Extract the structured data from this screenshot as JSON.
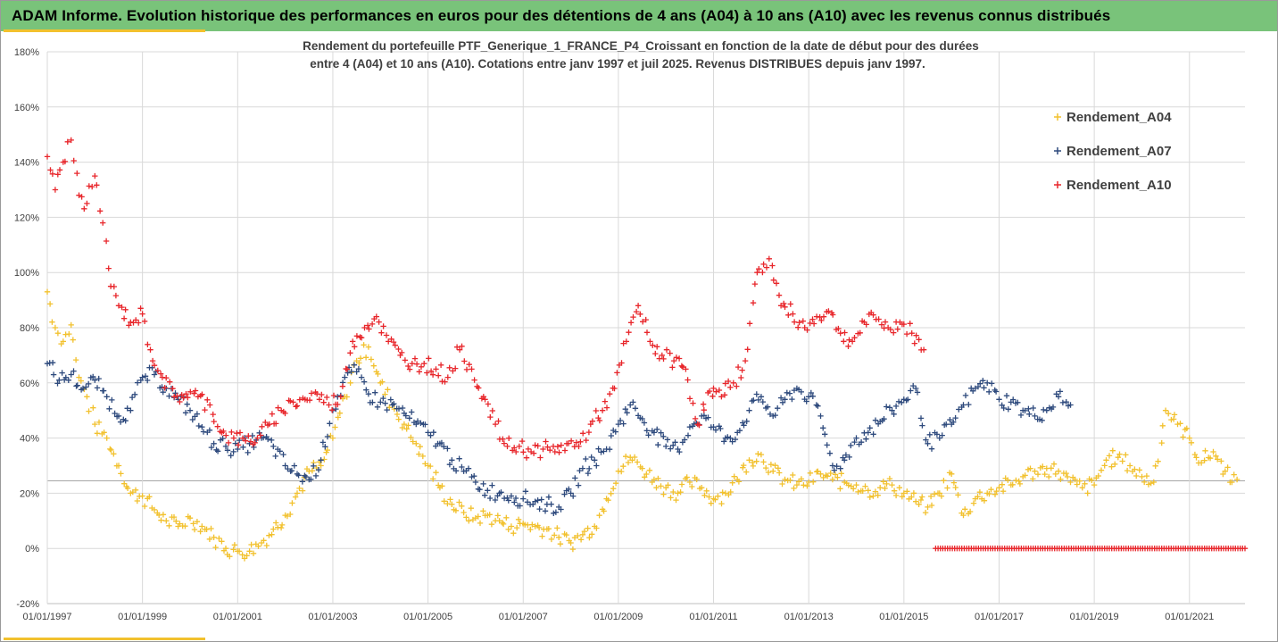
{
  "header": {
    "title": "ADAM Informe. Evolution historique des performances en euros pour des détentions de 4 ans (A04) à 10 ans (A10) avec les revenus connus distribués"
  },
  "colors": {
    "header_bg": "#79c37a",
    "accent": "#f2c12e",
    "A04": "#f2c12e",
    "A07": "#2e4a7d",
    "A10": "#e8262b"
  },
  "chart_data": {
    "type": "scatter",
    "title_lines": [
      "Rendement du portefeuille PTF_Generique_1_FRANCE_P4_Croissant  en fonction de la date de début pour des durées",
      "entre 4 (A04) et 10 ans (A10). Cotations  entre janv 1997 et juil 2025. Revenus DISTRIBUES depuis janv 1997."
    ],
    "marker": "+",
    "x_axis": {
      "type": "date",
      "range": [
        "1997-01-01",
        "2022-03-01"
      ],
      "ticks": [
        "01/01/1997",
        "01/01/1999",
        "01/01/2001",
        "01/01/2003",
        "01/01/2005",
        "01/01/2007",
        "01/01/2009",
        "01/01/2011",
        "01/01/2013",
        "01/01/2015",
        "01/01/2017",
        "01/01/2019",
        "01/01/2021"
      ]
    },
    "y_axis": {
      "range": [
        -20,
        180
      ],
      "unit": "%",
      "ticks": [
        "-20%",
        "0%",
        "20%",
        "40%",
        "60%",
        "80%",
        "100%",
        "120%",
        "140%",
        "160%",
        "180%"
      ]
    },
    "grid": "horizontal",
    "reference_line": 24.5,
    "legend": {
      "position": "top-right"
    },
    "series": [
      {
        "name": "Rendement_A04",
        "color": "#f2c12e",
        "points": [
          [
            "1997-01",
            93
          ],
          [
            "1997-03",
            80
          ],
          [
            "1997-05",
            75
          ],
          [
            "1997-07",
            81
          ],
          [
            "1997-09",
            62
          ],
          [
            "1997-11",
            55
          ],
          [
            "1998-01",
            45
          ],
          [
            "1998-04",
            40
          ],
          [
            "1998-07",
            30
          ],
          [
            "1998-10",
            20
          ],
          [
            "1999-01",
            19
          ],
          [
            "1999-04",
            14
          ],
          [
            "1999-07",
            10
          ],
          [
            "1999-10",
            8
          ],
          [
            "2000-01",
            11
          ],
          [
            "2000-04",
            8
          ],
          [
            "2000-07",
            4
          ],
          [
            "2000-10",
            0
          ],
          [
            "2001-01",
            -1
          ],
          [
            "2001-04",
            -1
          ],
          [
            "2001-07",
            2
          ],
          [
            "2001-10",
            7
          ],
          [
            "2002-01",
            12
          ],
          [
            "2002-04",
            20
          ],
          [
            "2002-07",
            28
          ],
          [
            "2002-10",
            30
          ],
          [
            "2003-01",
            40
          ],
          [
            "2003-04",
            55
          ],
          [
            "2003-07",
            68
          ],
          [
            "2003-10",
            73
          ],
          [
            "2004-01",
            60
          ],
          [
            "2004-04",
            52
          ],
          [
            "2004-07",
            45
          ],
          [
            "2004-10",
            38
          ],
          [
            "2005-01",
            30
          ],
          [
            "2005-04",
            22
          ],
          [
            "2005-07",
            16
          ],
          [
            "2005-10",
            13
          ],
          [
            "2006-01",
            11
          ],
          [
            "2006-04",
            12
          ],
          [
            "2006-07",
            10
          ],
          [
            "2006-10",
            8
          ],
          [
            "2007-01",
            9
          ],
          [
            "2007-04",
            8
          ],
          [
            "2007-07",
            7
          ],
          [
            "2007-10",
            4
          ],
          [
            "2008-01",
            2
          ],
          [
            "2008-04",
            5
          ],
          [
            "2008-07",
            8
          ],
          [
            "2008-10",
            18
          ],
          [
            "2009-01",
            28
          ],
          [
            "2009-04",
            33
          ],
          [
            "2009-07",
            29
          ],
          [
            "2009-10",
            25
          ],
          [
            "2010-01",
            22
          ],
          [
            "2010-04",
            20
          ],
          [
            "2010-07",
            24
          ],
          [
            "2010-10",
            22
          ],
          [
            "2011-01",
            18
          ],
          [
            "2011-04",
            20
          ],
          [
            "2011-07",
            25
          ],
          [
            "2011-10",
            32
          ],
          [
            "2012-01",
            34
          ],
          [
            "2012-04",
            28
          ],
          [
            "2012-07",
            25
          ],
          [
            "2012-10",
            23
          ],
          [
            "2013-01",
            24
          ],
          [
            "2013-04",
            27
          ],
          [
            "2013-07",
            25
          ],
          [
            "2013-10",
            24
          ],
          [
            "2014-01",
            23
          ],
          [
            "2014-04",
            21
          ],
          [
            "2014-07",
            22
          ],
          [
            "2014-10",
            23
          ],
          [
            "2015-01",
            20
          ],
          [
            "2015-04",
            17
          ],
          [
            "2015-07",
            15
          ],
          [
            "2015-10",
            20
          ],
          [
            "2016-01",
            27
          ],
          [
            "2016-04",
            12
          ],
          [
            "2016-07",
            18
          ],
          [
            "2016-10",
            20
          ],
          [
            "2017-01",
            22
          ],
          [
            "2017-04",
            23
          ],
          [
            "2017-07",
            26
          ],
          [
            "2017-10",
            28
          ],
          [
            "2018-01",
            29
          ],
          [
            "2018-04",
            28
          ],
          [
            "2018-07",
            24
          ],
          [
            "2018-10",
            22
          ],
          [
            "2019-01",
            23
          ],
          [
            "2019-04",
            32
          ],
          [
            "2019-07",
            33
          ],
          [
            "2019-10",
            30
          ],
          [
            "2020-01",
            26
          ],
          [
            "2020-04",
            24
          ],
          [
            "2020-07",
            50
          ],
          [
            "2020-10",
            45
          ],
          [
            "2021-01",
            40
          ],
          [
            "2021-04",
            31
          ],
          [
            "2021-07",
            35
          ],
          [
            "2021-10",
            28
          ],
          [
            "2022-01",
            25
          ]
        ]
      },
      {
        "name": "Rendement_A07",
        "color": "#2e4a7d",
        "points": [
          [
            "1997-01",
            67
          ],
          [
            "1997-04",
            61
          ],
          [
            "1997-07",
            63
          ],
          [
            "1997-10",
            58
          ],
          [
            "1998-01",
            61
          ],
          [
            "1998-04",
            55
          ],
          [
            "1998-07",
            48
          ],
          [
            "1998-10",
            50
          ],
          [
            "1999-01",
            62
          ],
          [
            "1999-04",
            63
          ],
          [
            "1999-07",
            58
          ],
          [
            "1999-10",
            54
          ],
          [
            "2000-01",
            50
          ],
          [
            "2000-04",
            44
          ],
          [
            "2000-07",
            38
          ],
          [
            "2000-10",
            37
          ],
          [
            "2001-01",
            36
          ],
          [
            "2001-04",
            38
          ],
          [
            "2001-07",
            40
          ],
          [
            "2001-10",
            37
          ],
          [
            "2002-01",
            30
          ],
          [
            "2002-04",
            27
          ],
          [
            "2002-07",
            25
          ],
          [
            "2002-10",
            32
          ],
          [
            "2003-01",
            50
          ],
          [
            "2003-04",
            62
          ],
          [
            "2003-07",
            64
          ],
          [
            "2003-10",
            56
          ],
          [
            "2004-01",
            53
          ],
          [
            "2004-04",
            52
          ],
          [
            "2004-07",
            49
          ],
          [
            "2004-10",
            45
          ],
          [
            "2005-01",
            42
          ],
          [
            "2005-04",
            38
          ],
          [
            "2005-07",
            32
          ],
          [
            "2005-10",
            28
          ],
          [
            "2006-01",
            24
          ],
          [
            "2006-04",
            21
          ],
          [
            "2006-07",
            20
          ],
          [
            "2006-10",
            19
          ],
          [
            "2007-01",
            18
          ],
          [
            "2007-04",
            17
          ],
          [
            "2007-07",
            16
          ],
          [
            "2007-10",
            15
          ],
          [
            "2008-01",
            20
          ],
          [
            "2008-04",
            29
          ],
          [
            "2008-07",
            32
          ],
          [
            "2008-10",
            36
          ],
          [
            "2009-01",
            45
          ],
          [
            "2009-04",
            52
          ],
          [
            "2009-07",
            47
          ],
          [
            "2009-10",
            42
          ],
          [
            "2010-01",
            37
          ],
          [
            "2010-04",
            36
          ],
          [
            "2010-07",
            44
          ],
          [
            "2010-10",
            48
          ],
          [
            "2011-01",
            44
          ],
          [
            "2011-04",
            40
          ],
          [
            "2011-07",
            42
          ],
          [
            "2011-10",
            50
          ],
          [
            "2012-01",
            55
          ],
          [
            "2012-04",
            48
          ],
          [
            "2012-07",
            54
          ],
          [
            "2012-10",
            58
          ],
          [
            "2013-01",
            55
          ],
          [
            "2013-04",
            48
          ],
          [
            "2013-07",
            30
          ],
          [
            "2013-10",
            32
          ],
          [
            "2014-01",
            40
          ],
          [
            "2014-04",
            42
          ],
          [
            "2014-07",
            46
          ],
          [
            "2014-10",
            50
          ],
          [
            "2015-01",
            54
          ],
          [
            "2015-04",
            58
          ],
          [
            "2015-07",
            38
          ],
          [
            "2015-10",
            40
          ],
          [
            "2016-01",
            45
          ],
          [
            "2016-04",
            52
          ],
          [
            "2016-07",
            58
          ],
          [
            "2016-10",
            60
          ],
          [
            "2017-01",
            54
          ],
          [
            "2017-04",
            53
          ],
          [
            "2017-07",
            50
          ],
          [
            "2017-10",
            48
          ],
          [
            "2018-01",
            50
          ],
          [
            "2018-04",
            55
          ],
          [
            "2018-07",
            52
          ]
        ]
      },
      {
        "name": "Rendement_A10",
        "color": "#e8262b",
        "points": [
          [
            "1997-01",
            142
          ],
          [
            "1997-03",
            130
          ],
          [
            "1997-05",
            140
          ],
          [
            "1997-07",
            148
          ],
          [
            "1997-09",
            128
          ],
          [
            "1997-11",
            125
          ],
          [
            "1998-01",
            135
          ],
          [
            "1998-03",
            118
          ],
          [
            "1998-05",
            95
          ],
          [
            "1998-07",
            88
          ],
          [
            "1998-10",
            82
          ],
          [
            "1999-01",
            85
          ],
          [
            "1999-03",
            72
          ],
          [
            "1999-06",
            62
          ],
          [
            "1999-09",
            55
          ],
          [
            "1999-12",
            56
          ],
          [
            "2000-03",
            55
          ],
          [
            "2000-06",
            52
          ],
          [
            "2000-09",
            42
          ],
          [
            "2000-12",
            40
          ],
          [
            "2001-03",
            39
          ],
          [
            "2001-06",
            40
          ],
          [
            "2001-09",
            45
          ],
          [
            "2001-12",
            50
          ],
          [
            "2002-03",
            53
          ],
          [
            "2002-06",
            54
          ],
          [
            "2002-09",
            56
          ],
          [
            "2002-12",
            52
          ],
          [
            "2003-03",
            55
          ],
          [
            "2003-06",
            75
          ],
          [
            "2003-09",
            80
          ],
          [
            "2003-12",
            84
          ],
          [
            "2004-03",
            75
          ],
          [
            "2004-06",
            70
          ],
          [
            "2004-09",
            67
          ],
          [
            "2004-12",
            67
          ],
          [
            "2005-03",
            65
          ],
          [
            "2005-06",
            62
          ],
          [
            "2005-09",
            72
          ],
          [
            "2005-12",
            65
          ],
          [
            "2006-03",
            55
          ],
          [
            "2006-06",
            45
          ],
          [
            "2006-09",
            37
          ],
          [
            "2006-12",
            37
          ],
          [
            "2007-03",
            35
          ],
          [
            "2007-06",
            36
          ],
          [
            "2007-09",
            35
          ],
          [
            "2007-12",
            38
          ],
          [
            "2008-03",
            37
          ],
          [
            "2008-06",
            45
          ],
          [
            "2008-09",
            50
          ],
          [
            "2008-12",
            58
          ],
          [
            "2009-03",
            75
          ],
          [
            "2009-06",
            88
          ],
          [
            "2009-09",
            75
          ],
          [
            "2009-12",
            70
          ],
          [
            "2010-03",
            68
          ],
          [
            "2010-06",
            65
          ],
          [
            "2010-09",
            45
          ],
          [
            "2010-12",
            57
          ],
          [
            "2011-03",
            55
          ],
          [
            "2011-06",
            60
          ],
          [
            "2011-09",
            68
          ],
          [
            "2011-12",
            100
          ],
          [
            "2012-03",
            105
          ],
          [
            "2012-06",
            88
          ],
          [
            "2012-09",
            85
          ],
          [
            "2012-12",
            80
          ],
          [
            "2013-03",
            84
          ],
          [
            "2013-06",
            86
          ],
          [
            "2013-09",
            78
          ],
          [
            "2013-12",
            75
          ],
          [
            "2014-03",
            82
          ],
          [
            "2014-06",
            83
          ],
          [
            "2014-09",
            80
          ],
          [
            "2014-12",
            82
          ],
          [
            "2015-03",
            78
          ],
          [
            "2015-06",
            72
          ]
        ],
        "zero_run": {
          "from": "2015-09",
          "to": "2022-03",
          "value": 0
        }
      }
    ]
  }
}
